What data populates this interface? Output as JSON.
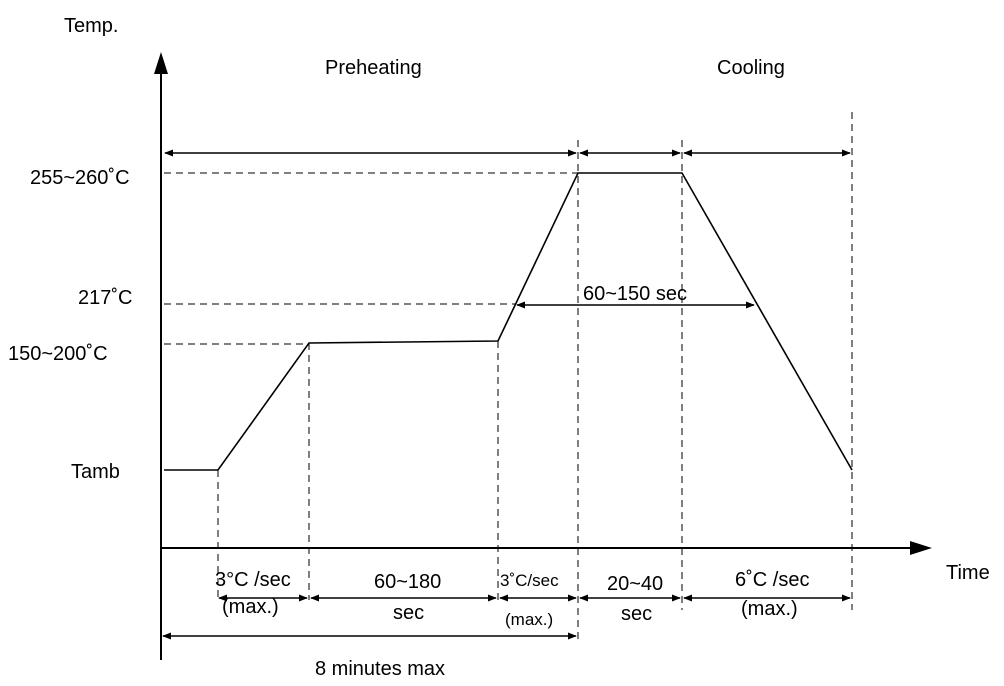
{
  "diagram": {
    "y_axis_label": "Temp.",
    "x_axis_label": "Time",
    "temperature_levels": [
      {
        "key": "peak",
        "label": "255~260˚C"
      },
      {
        "key": "liquidus",
        "label": "217˚C"
      },
      {
        "key": "soak",
        "label": "150~200˚C"
      },
      {
        "key": "ambient",
        "label": "Tamb"
      }
    ],
    "phases": {
      "preheating": "Preheating",
      "cooling": "Cooling"
    },
    "intervals": {
      "above_liquidus": "60~150 sec",
      "ramp_up_1_line1": "3°C /sec",
      "ramp_up_1_line2": "(max.)",
      "soak_line1": "60~180",
      "soak_line2": "sec",
      "ramp_up_2_line1": "3˚C/sec",
      "ramp_up_2_line2": "(max.)",
      "peak_line1": "20~40",
      "peak_line2": "sec",
      "cooling_rate_line1": "6˚C /sec",
      "cooling_rate_line2": "(max.)",
      "total": "8 minutes max"
    }
  }
}
